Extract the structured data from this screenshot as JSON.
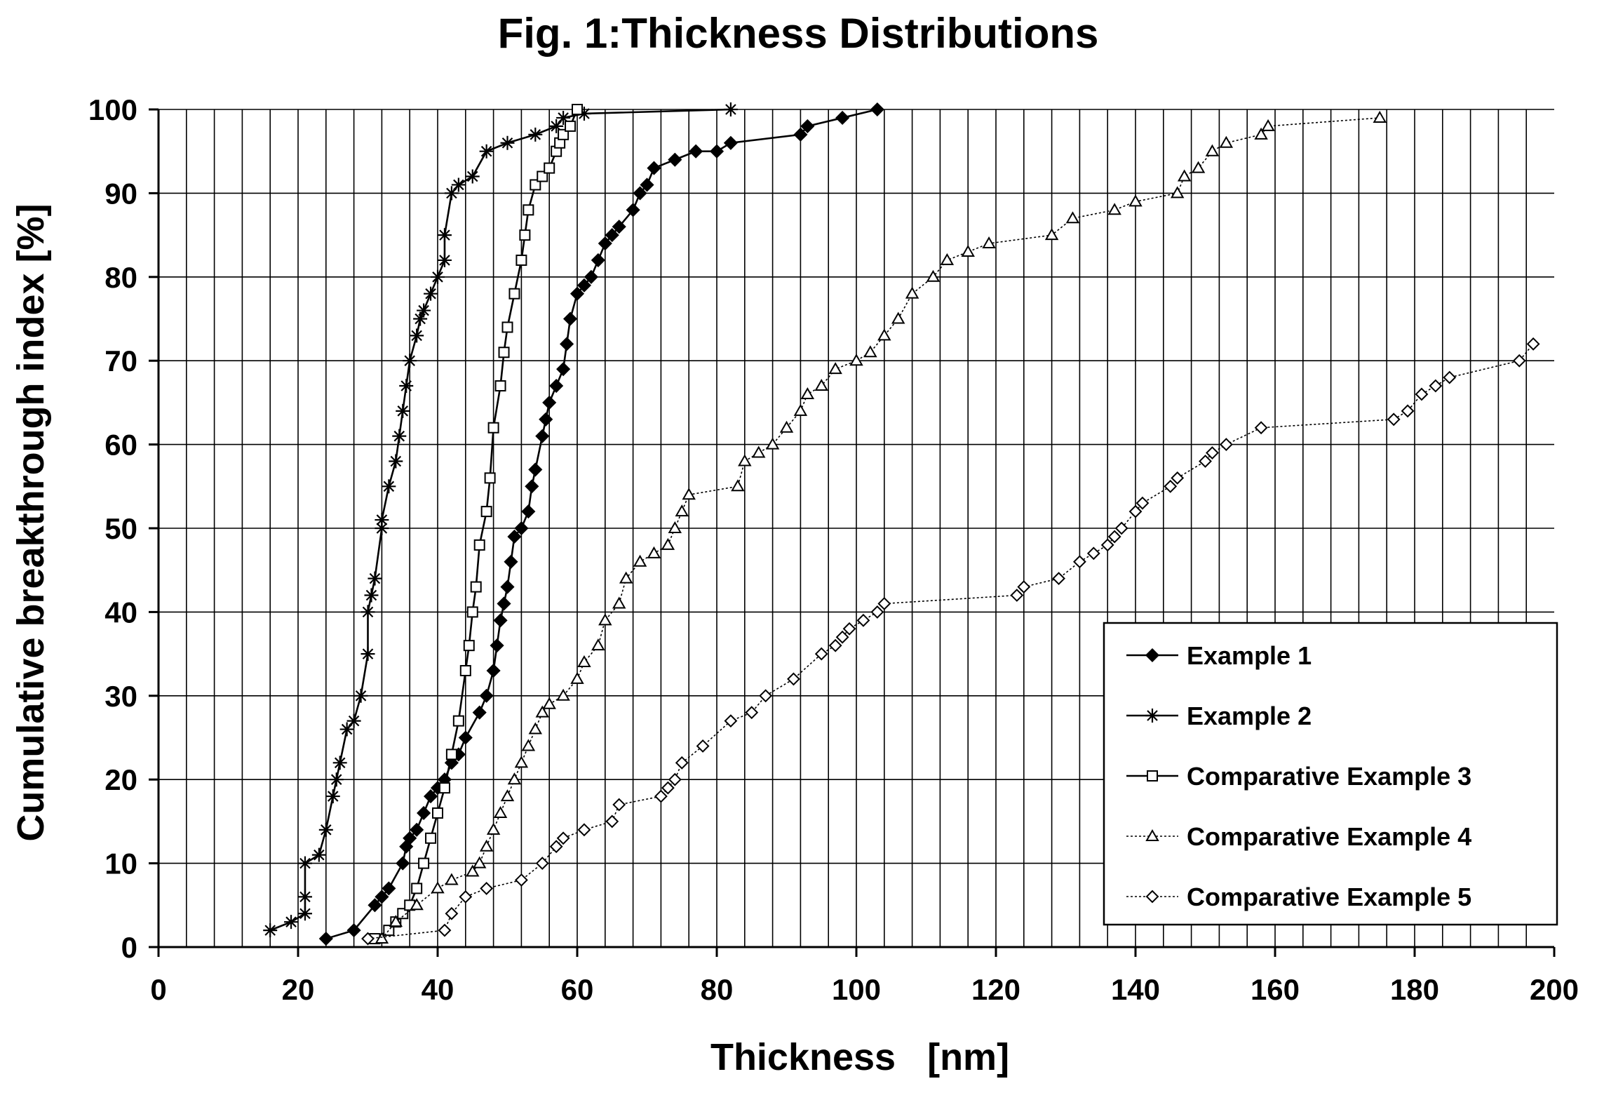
{
  "chart_data": {
    "type": "line",
    "title": "Fig. 1:Thickness Distributions",
    "xlabel": "Thickness   [nm]",
    "ylabel": "Cumulative breakthrough index [%]",
    "xlim": [
      0,
      200
    ],
    "ylim": [
      0,
      100
    ],
    "xticks": [
      0,
      20,
      40,
      60,
      80,
      100,
      120,
      140,
      160,
      180,
      200
    ],
    "yticks": [
      0,
      10,
      20,
      30,
      40,
      50,
      60,
      70,
      80,
      90,
      100
    ],
    "x_minor_step": 4,
    "grid": true,
    "legend_position": "bottom-right",
    "series": [
      {
        "name": "Example 1",
        "marker": "filled-diamond",
        "line_style": "solid",
        "x": [
          24,
          28,
          31,
          32,
          33,
          35,
          35.5,
          36,
          37,
          38,
          39,
          40,
          41,
          42,
          43,
          44,
          46,
          47,
          48,
          48.5,
          49,
          49.5,
          50,
          50.5,
          51,
          52,
          53,
          53.5,
          54,
          55,
          55.5,
          56,
          57,
          58,
          58.5,
          59,
          60,
          61,
          62,
          63,
          64,
          65,
          66,
          68,
          69,
          70,
          71,
          74,
          77,
          80,
          82,
          92,
          93,
          98,
          103
        ],
        "y": [
          1,
          2,
          5,
          6,
          7,
          10,
          12,
          13,
          14,
          16,
          18,
          19,
          20,
          22,
          23,
          25,
          28,
          30,
          33,
          36,
          39,
          41,
          43,
          46,
          49,
          50,
          52,
          55,
          57,
          61,
          63,
          65,
          67,
          69,
          72,
          75,
          78,
          79,
          80,
          82,
          84,
          85,
          86,
          88,
          90,
          91,
          93,
          94,
          95,
          95,
          96,
          97,
          98,
          99,
          100
        ]
      },
      {
        "name": "Example 2",
        "marker": "asterisk",
        "line_style": "solid",
        "x": [
          16,
          19,
          21,
          21,
          21,
          23,
          24,
          25,
          25.5,
          26,
          27,
          28,
          29,
          30,
          30,
          30.5,
          31,
          32,
          32,
          33,
          34,
          34.5,
          35,
          35.5,
          36,
          37,
          37.5,
          38,
          39,
          40,
          41,
          41,
          42,
          43,
          45,
          47,
          50,
          54,
          57,
          58,
          61,
          82
        ],
        "y": [
          2,
          3,
          4,
          6,
          10,
          11,
          14,
          18,
          20,
          22,
          26,
          27,
          30,
          35,
          40,
          42,
          44,
          50,
          51,
          55,
          58,
          61,
          64,
          67,
          70,
          73,
          75,
          76,
          78,
          80,
          82,
          85,
          90,
          91,
          92,
          95,
          96,
          97,
          98,
          99,
          99.5,
          100
        ]
      },
      {
        "name": "Comparative Example 3",
        "marker": "open-square",
        "line_style": "solid",
        "x": [
          31,
          33,
          34,
          35,
          36,
          37,
          38,
          39,
          40,
          41,
          42,
          43,
          44,
          44.5,
          45,
          45.5,
          46,
          47,
          47.5,
          48,
          49,
          49.5,
          50,
          51,
          52,
          52.5,
          53,
          54,
          55,
          56,
          57,
          57.5,
          58,
          59,
          60
        ],
        "y": [
          1,
          2,
          3,
          4,
          5,
          7,
          10,
          13,
          16,
          19,
          23,
          27,
          33,
          36,
          40,
          43,
          48,
          52,
          56,
          62,
          67,
          71,
          74,
          78,
          82,
          85,
          88,
          91,
          92,
          93,
          95,
          96,
          97,
          98,
          100
        ]
      },
      {
        "name": "Comparative Example 4",
        "marker": "open-triangle",
        "line_style": "dotted",
        "x": [
          32,
          34,
          37,
          40,
          42,
          45,
          46,
          47,
          48,
          49,
          50,
          51,
          52,
          53,
          54,
          55,
          56,
          58,
          60,
          61,
          63,
          64,
          66,
          67,
          69,
          71,
          73,
          74,
          75,
          76,
          83,
          84,
          86,
          88,
          90,
          92,
          93,
          95,
          97,
          100,
          102,
          104,
          106,
          108,
          111,
          113,
          116,
          119,
          128,
          131,
          137,
          140,
          146,
          147,
          149,
          151,
          153,
          158,
          159,
          175
        ],
        "y": [
          1,
          3,
          5,
          7,
          8,
          9,
          10,
          12,
          14,
          16,
          18,
          20,
          22,
          24,
          26,
          28,
          29,
          30,
          32,
          34,
          36,
          39,
          41,
          44,
          46,
          47,
          48,
          50,
          52,
          54,
          55,
          58,
          59,
          60,
          62,
          64,
          66,
          67,
          69,
          70,
          71,
          73,
          75,
          78,
          80,
          82,
          83,
          84,
          85,
          87,
          88,
          89,
          90,
          92,
          93,
          95,
          96,
          97,
          98,
          99
        ]
      },
      {
        "name": "Comparative Example 5",
        "marker": "open-diamond",
        "line_style": "dotted",
        "x": [
          30,
          41,
          42,
          44,
          47,
          52,
          55,
          57,
          58,
          61,
          65,
          66,
          72,
          73,
          74,
          75,
          78,
          82,
          85,
          87,
          91,
          95,
          97,
          98,
          99,
          101,
          103,
          104,
          123,
          124,
          129,
          132,
          134,
          136,
          137,
          138,
          140,
          141,
          145,
          146,
          150,
          151,
          153,
          158,
          177,
          179,
          181,
          183,
          185,
          195,
          197
        ],
        "y": [
          1,
          2,
          4,
          6,
          7,
          8,
          10,
          12,
          13,
          14,
          15,
          17,
          18,
          19,
          20,
          22,
          24,
          27,
          28,
          30,
          32,
          35,
          36,
          37,
          38,
          39,
          40,
          41,
          42,
          43,
          44,
          46,
          47,
          48,
          49,
          50,
          52,
          53,
          55,
          56,
          58,
          59,
          60,
          62,
          63,
          64,
          66,
          67,
          68,
          70,
          72
        ]
      }
    ]
  }
}
